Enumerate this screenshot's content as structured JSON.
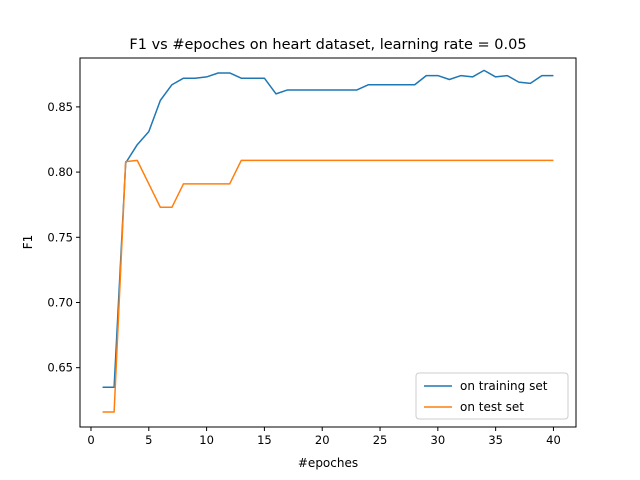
{
  "chart_data": {
    "type": "line",
    "title": "F1 vs #epoches on heart dataset, learning rate = 0.05",
    "xlabel": "#epoches",
    "ylabel": "F1",
    "xlim": [
      -0.95,
      41.95
    ],
    "ylim": [
      0.6045,
      0.8875
    ],
    "xticks": [
      0,
      5,
      10,
      15,
      20,
      25,
      30,
      35,
      40
    ],
    "yticks": [
      0.65,
      0.7,
      0.75,
      0.8,
      0.85
    ],
    "ytick_labels": [
      "0.65",
      "0.70",
      "0.75",
      "0.80",
      "0.85"
    ],
    "grid": false,
    "legend_position": "lower-right",
    "x": [
      1,
      2,
      3,
      4,
      5,
      6,
      7,
      8,
      9,
      10,
      11,
      12,
      13,
      14,
      15,
      16,
      17,
      18,
      19,
      20,
      21,
      22,
      23,
      24,
      25,
      26,
      27,
      28,
      29,
      30,
      31,
      32,
      33,
      34,
      35,
      36,
      37,
      38,
      39,
      40
    ],
    "series": [
      {
        "name": "on training set",
        "color": "#1f77b4",
        "values": [
          0.635,
          0.635,
          0.807,
          0.821,
          0.831,
          0.855,
          0.867,
          0.872,
          0.872,
          0.873,
          0.876,
          0.876,
          0.872,
          0.872,
          0.872,
          0.86,
          0.863,
          0.863,
          0.863,
          0.863,
          0.863,
          0.863,
          0.863,
          0.867,
          0.867,
          0.867,
          0.867,
          0.867,
          0.874,
          0.874,
          0.871,
          0.874,
          0.873,
          0.878,
          0.873,
          0.874,
          0.869,
          0.868,
          0.874,
          0.874
        ]
      },
      {
        "name": "on test set",
        "color": "#ff7f0e",
        "values": [
          0.616,
          0.616,
          0.808,
          0.809,
          0.791,
          0.773,
          0.773,
          0.791,
          0.791,
          0.791,
          0.791,
          0.791,
          0.809,
          0.809,
          0.809,
          0.809,
          0.809,
          0.809,
          0.809,
          0.809,
          0.809,
          0.809,
          0.809,
          0.809,
          0.809,
          0.809,
          0.809,
          0.809,
          0.809,
          0.809,
          0.809,
          0.809,
          0.809,
          0.809,
          0.809,
          0.809,
          0.809,
          0.809,
          0.809,
          0.809
        ]
      }
    ]
  }
}
